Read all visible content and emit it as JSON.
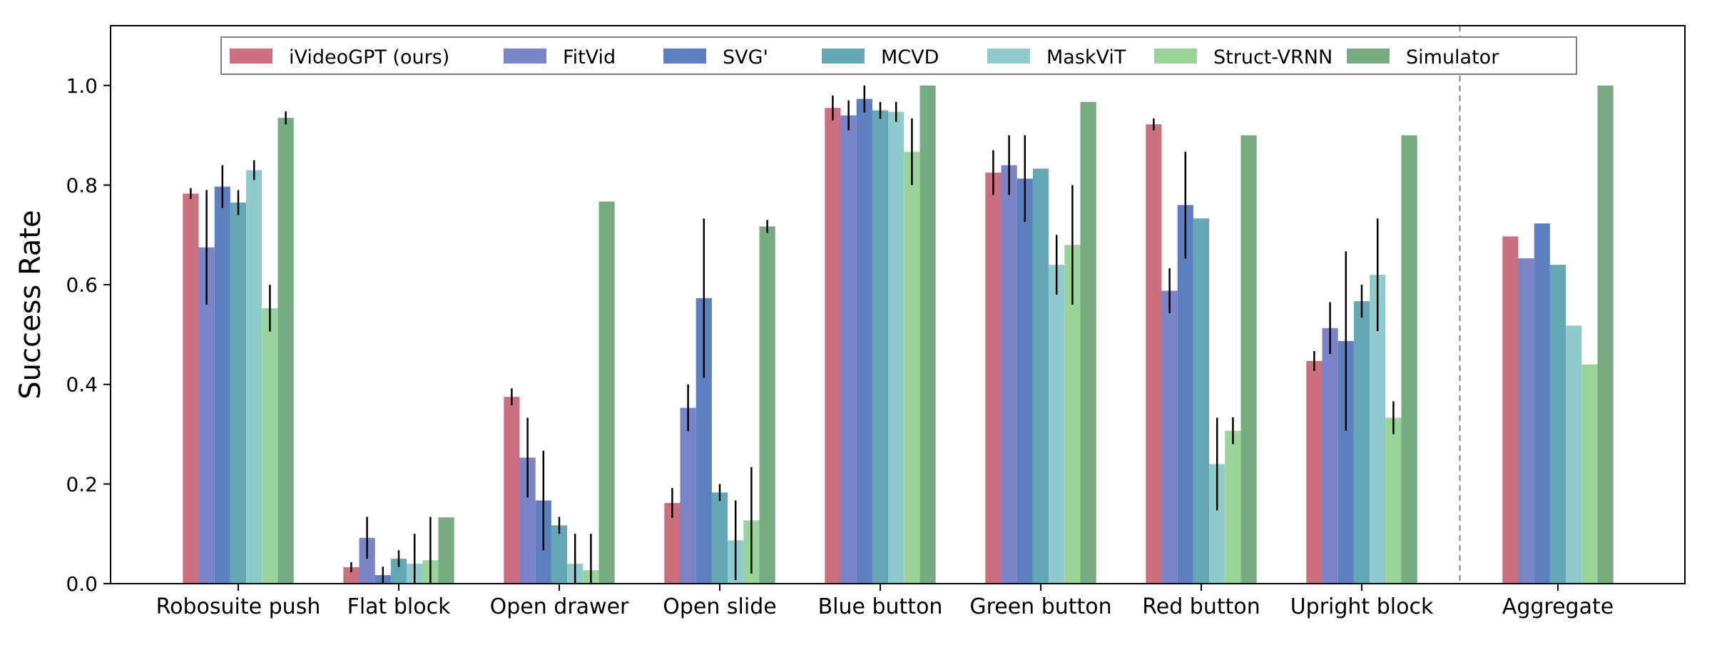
{
  "chart_data": {
    "type": "bar",
    "title": "",
    "xlabel": "",
    "ylabel": "Success Rate",
    "ylim": [
      0,
      1.12
    ],
    "yticks": [
      "0.0",
      "0.2",
      "0.4",
      "0.6",
      "0.8",
      "1.0"
    ],
    "grid": false,
    "legend_position": "top-center",
    "separator_before_category": "Aggregate",
    "categories": [
      "Robosuite push",
      "Flat block",
      "Open drawer",
      "Open slide",
      "Blue button",
      "Green button",
      "Red button",
      "Upright block",
      "Aggregate"
    ],
    "series": [
      {
        "name": "iVideoGPT (ours)",
        "color": "#cc7080",
        "values": [
          0.783,
          0.033,
          0.375,
          0.162,
          0.955,
          0.825,
          0.922,
          0.447,
          0.697
        ],
        "errors": [
          0.011,
          0.01,
          0.017,
          0.03,
          0.025,
          0.045,
          0.012,
          0.02,
          null
        ]
      },
      {
        "name": "FitVid",
        "color": "#7a85c8",
        "values": [
          0.675,
          0.092,
          0.253,
          0.353,
          0.94,
          0.84,
          0.588,
          0.513,
          0.653
        ],
        "errors": [
          0.115,
          0.042,
          0.08,
          0.047,
          0.03,
          0.06,
          0.045,
          0.052,
          null
        ]
      },
      {
        "name": "SVG'",
        "color": "#5b7fbf",
        "values": [
          0.797,
          0.017,
          0.167,
          0.573,
          0.973,
          0.813,
          0.76,
          0.487,
          0.723
        ],
        "errors": [
          0.043,
          0.017,
          0.1,
          0.16,
          0.027,
          0.087,
          0.107,
          0.18,
          null
        ]
      },
      {
        "name": "MCVD",
        "color": "#64a8b5",
        "values": [
          0.765,
          0.05,
          0.117,
          0.183,
          0.95,
          0.833,
          0.733,
          0.567,
          0.64
        ],
        "errors": [
          0.025,
          0.017,
          0.017,
          0.017,
          0.017,
          null,
          null,
          0.033,
          null
        ]
      },
      {
        "name": "MaskViT",
        "color": "#8fcbcc",
        "values": [
          0.83,
          0.04,
          0.04,
          0.087,
          0.947,
          0.64,
          0.24,
          0.62,
          0.518
        ],
        "errors": [
          0.02,
          0.06,
          0.06,
          0.08,
          0.02,
          0.06,
          0.093,
          0.113,
          null
        ]
      },
      {
        "name": "Struct-VRNN",
        "color": "#9bd49b",
        "values": [
          0.553,
          0.047,
          0.027,
          0.127,
          0.867,
          0.68,
          0.307,
          0.333,
          0.44
        ],
        "errors": [
          0.047,
          0.087,
          0.073,
          0.107,
          0.067,
          0.12,
          0.027,
          0.033,
          null
        ]
      },
      {
        "name": "Simulator",
        "color": "#77ab80",
        "values": [
          0.935,
          0.133,
          0.767,
          0.717,
          1.0,
          0.967,
          0.9,
          0.9,
          1.0
        ],
        "errors": [
          0.013,
          null,
          null,
          0.013,
          null,
          null,
          null,
          null,
          null
        ]
      }
    ]
  }
}
